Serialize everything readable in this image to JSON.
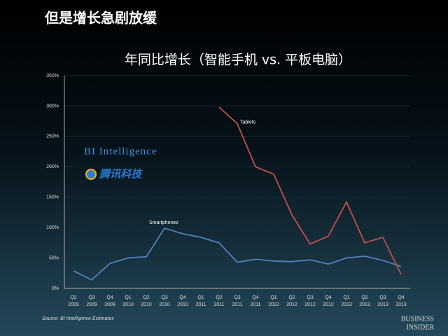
{
  "header": {
    "title": "但是增长急剧放缓"
  },
  "chart_data": {
    "type": "line",
    "title": "年同比增长（智能手机 vs. 平板电脑）",
    "categories": [
      [
        "Q2",
        "2009"
      ],
      [
        "Q3",
        "2009"
      ],
      [
        "Q4",
        "2009"
      ],
      [
        "Q1",
        "2010"
      ],
      [
        "Q2",
        "2010"
      ],
      [
        "Q3",
        "2010"
      ],
      [
        "Q4",
        "2010"
      ],
      [
        "Q1",
        "2011"
      ],
      [
        "Q2",
        "2011"
      ],
      [
        "Q3",
        "2011"
      ],
      [
        "Q4",
        "2011"
      ],
      [
        "Q1",
        "2012"
      ],
      [
        "Q2",
        "2012"
      ],
      [
        "Q3",
        "2012"
      ],
      [
        "Q4",
        "2012"
      ],
      [
        "Q1",
        "2013"
      ],
      [
        "Q2",
        "2013"
      ],
      [
        "Q3",
        "2013"
      ],
      [
        "Q4",
        "2013"
      ]
    ],
    "series": [
      {
        "name": "Smartphones",
        "color": "#4f81bd",
        "values": [
          29,
          14,
          41,
          50,
          52,
          99,
          90,
          84,
          75,
          43,
          48,
          45,
          44,
          47,
          40,
          50,
          53,
          46,
          36
        ]
      },
      {
        "name": "Tablets",
        "color": "#c0504d",
        "values": [
          null,
          null,
          null,
          null,
          null,
          null,
          null,
          null,
          298,
          271,
          200,
          188,
          121,
          73,
          86,
          142,
          75,
          84,
          23
        ]
      }
    ],
    "ylim": [
      0,
      350
    ],
    "yticks": [
      {
        "value": 0,
        "label": "0%"
      },
      {
        "value": 50,
        "label": "50%"
      },
      {
        "value": 100,
        "label": "100%"
      },
      {
        "value": 150,
        "label": "150%"
      },
      {
        "value": 200,
        "label": "200%"
      },
      {
        "value": 250,
        "label": "250%"
      },
      {
        "value": 300,
        "label": "300%"
      },
      {
        "value": 350,
        "label": "350%"
      }
    ],
    "grid": true,
    "source": "Source: BI Intelligence Estimates"
  },
  "logos": {
    "bi": "BI Intelligence",
    "tencent": "腾讯科技",
    "business": "Business",
    "insider": "Insider"
  }
}
